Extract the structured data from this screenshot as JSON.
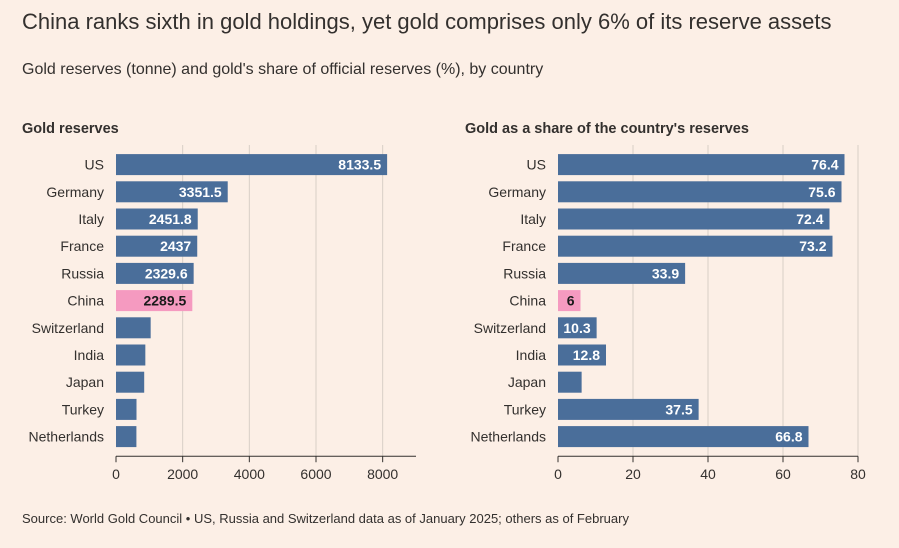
{
  "title": "China ranks sixth in gold holdings, yet gold comprises only 6% of its reserve assets",
  "subtitle": "Gold reserves (tonne) and gold's share of official reserves (%), by country",
  "source": "Source: World Gold Council • US, Russia and Switzerland data as of January 2025; others as of February",
  "colors": {
    "bar": "#4a6e9a",
    "highlight": "#f59ac0",
    "grid": "#d8cfc7",
    "axis": "#33302e",
    "text": "#33302e",
    "label_on_bar": "#ffffff",
    "label_on_highlight": "#1a1a1a",
    "background": "#fcefe6"
  },
  "chart_data": [
    {
      "type": "bar",
      "orientation": "horizontal",
      "title": "Gold reserves",
      "categories": [
        "US",
        "Germany",
        "Italy",
        "France",
        "Russia",
        "China",
        "Switzerland",
        "India",
        "Japan",
        "Turkey",
        "Netherlands"
      ],
      "values": [
        8133.5,
        3351.5,
        2451.8,
        2437,
        2329.6,
        2289.5,
        1040,
        880,
        846,
        615,
        612
      ],
      "data_labels": [
        "8133.5",
        "3351.5",
        "2451.8",
        "2437",
        "2329.6",
        "2289.5",
        "",
        "",
        "",
        "",
        ""
      ],
      "highlight": "China",
      "xlim": [
        0,
        9000
      ],
      "xticks": [
        0,
        2000,
        4000,
        6000,
        8000
      ],
      "grid": true
    },
    {
      "type": "bar",
      "orientation": "horizontal",
      "title": "Gold as a share of the country's reserves",
      "categories": [
        "US",
        "Germany",
        "Italy",
        "France",
        "Russia",
        "China",
        "Switzerland",
        "India",
        "Japan",
        "Turkey",
        "Netherlands"
      ],
      "values": [
        76.4,
        75.6,
        72.4,
        73.2,
        33.9,
        6,
        10.3,
        12.8,
        6.3,
        37.5,
        66.8
      ],
      "data_labels": [
        "76.4",
        "75.6",
        "72.4",
        "73.2",
        "33.9",
        "6",
        "10.3",
        "12.8",
        "",
        "37.5",
        "66.8"
      ],
      "highlight": "China",
      "xlim": [
        0,
        80
      ],
      "xticks": [
        0,
        20,
        40,
        60,
        80
      ],
      "grid": true
    }
  ]
}
